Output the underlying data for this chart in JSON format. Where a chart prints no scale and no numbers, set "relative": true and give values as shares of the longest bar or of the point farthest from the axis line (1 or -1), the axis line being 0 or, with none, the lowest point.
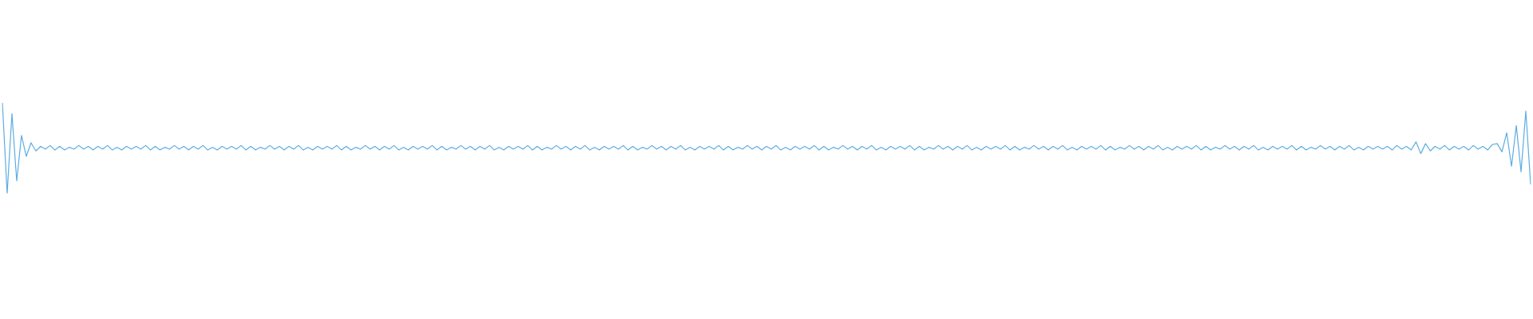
{
  "chart_data": {
    "type": "line",
    "relative": true,
    "legend": false,
    "marker": "none",
    "line_style": "solid",
    "categories": [
      null,
      null,
      null,
      null,
      null,
      null,
      null,
      null,
      null,
      null,
      null,
      null,
      null,
      null,
      null,
      null,
      null,
      null,
      null,
      null,
      null,
      null,
      null,
      null,
      null,
      null,
      null,
      null,
      null,
      null,
      null,
      null,
      null,
      null,
      null,
      null,
      null,
      null,
      null,
      null,
      null,
      null,
      null,
      null,
      null,
      null,
      null,
      null,
      null,
      null,
      null,
      null,
      null,
      null,
      null,
      null,
      null,
      null,
      null,
      null,
      null,
      null,
      null,
      null,
      null,
      null,
      null,
      null,
      null,
      null,
      null,
      null,
      null,
      null,
      null,
      null,
      null,
      null,
      null,
      null,
      null,
      null,
      null,
      null,
      null,
      null,
      null,
      null,
      null,
      null,
      null,
      null,
      null,
      null,
      null,
      null,
      null,
      null,
      null,
      null,
      null,
      null,
      null,
      null,
      null,
      null,
      null,
      null,
      null,
      null,
      null,
      null,
      null,
      null,
      null,
      null,
      null,
      null,
      null,
      null,
      null,
      null,
      null,
      null,
      null,
      null,
      null,
      null,
      null,
      null,
      null,
      null,
      null,
      null,
      null,
      null,
      null,
      null,
      null,
      null,
      null,
      null,
      null,
      null,
      null,
      null,
      null,
      null,
      null,
      null,
      null,
      null,
      null,
      null,
      null,
      null,
      null,
      null,
      null,
      null,
      null,
      null,
      null,
      null,
      null,
      null,
      null,
      null,
      null,
      null,
      null,
      null,
      null,
      null,
      null,
      null,
      null,
      null,
      null,
      null,
      null,
      null,
      null,
      null,
      null,
      null,
      null,
      null,
      null,
      null,
      null,
      null,
      null,
      null,
      null,
      null,
      null,
      null,
      null,
      null,
      null,
      null,
      null,
      null,
      null,
      null,
      null,
      null,
      null,
      null,
      null,
      null,
      null,
      null,
      null,
      null,
      null,
      null,
      null,
      null,
      null,
      null,
      null,
      null,
      null,
      null,
      null,
      null,
      null,
      null,
      null,
      null,
      null,
      null,
      null,
      null,
      null,
      null,
      null,
      null,
      null,
      null,
      null,
      null,
      null,
      null,
      null,
      null,
      null,
      null,
      null,
      null,
      null,
      null,
      null,
      null,
      null,
      null,
      null,
      null,
      null,
      null,
      null,
      null,
      null,
      null,
      null,
      null,
      null,
      null,
      null,
      null,
      null,
      null,
      null,
      null,
      null,
      null,
      null,
      null,
      null,
      null,
      null,
      null,
      null,
      null,
      null,
      null,
      null,
      null,
      null,
      null,
      null,
      null,
      null,
      null,
      null,
      null,
      null,
      null,
      null,
      null,
      null,
      null,
      null,
      null,
      null,
      null,
      null,
      null,
      null,
      null,
      null,
      null,
      null,
      null,
      null,
      null,
      null,
      null,
      null
    ],
    "series": [
      {
        "color": "#5dade2",
        "values": [
          1.0,
          0.0,
          0.88,
          0.14,
          0.64,
          0.41,
          0.56,
          0.47,
          0.52,
          0.49,
          0.53,
          0.48,
          0.52,
          0.48,
          0.51,
          0.49,
          0.53,
          0.49,
          0.52,
          0.48,
          0.52,
          0.49,
          0.53,
          0.48,
          0.51,
          0.48,
          0.52,
          0.49,
          0.52,
          0.49,
          0.53,
          0.48,
          0.52,
          0.48,
          0.51,
          0.49,
          0.53,
          0.49,
          0.52,
          0.48,
          0.52,
          0.49,
          0.53,
          0.48,
          0.51,
          0.48,
          0.52,
          0.49,
          0.52,
          0.49,
          0.53,
          0.48,
          0.52,
          0.48,
          0.51,
          0.49,
          0.53,
          0.49,
          0.52,
          0.48,
          0.52,
          0.49,
          0.53,
          0.48,
          0.51,
          0.48,
          0.52,
          0.49,
          0.52,
          0.49,
          0.53,
          0.48,
          0.52,
          0.48,
          0.51,
          0.49,
          0.53,
          0.49,
          0.52,
          0.48,
          0.52,
          0.49,
          0.53,
          0.48,
          0.51,
          0.48,
          0.52,
          0.49,
          0.52,
          0.49,
          0.53,
          0.48,
          0.52,
          0.48,
          0.51,
          0.49,
          0.53,
          0.49,
          0.52,
          0.48,
          0.52,
          0.49,
          0.53,
          0.48,
          0.51,
          0.48,
          0.52,
          0.49,
          0.52,
          0.49,
          0.53,
          0.48,
          0.52,
          0.48,
          0.51,
          0.49,
          0.53,
          0.49,
          0.52,
          0.48,
          0.52,
          0.49,
          0.53,
          0.48,
          0.51,
          0.48,
          0.52,
          0.49,
          0.52,
          0.49,
          0.53,
          0.48,
          0.52,
          0.48,
          0.51,
          0.49,
          0.53,
          0.49,
          0.52,
          0.48,
          0.52,
          0.49,
          0.53,
          0.48,
          0.51,
          0.48,
          0.52,
          0.49,
          0.52,
          0.49,
          0.53,
          0.48,
          0.52,
          0.48,
          0.51,
          0.49,
          0.53,
          0.49,
          0.52,
          0.48,
          0.52,
          0.49,
          0.53,
          0.48,
          0.51,
          0.48,
          0.52,
          0.49,
          0.52,
          0.49,
          0.53,
          0.48,
          0.52,
          0.48,
          0.51,
          0.49,
          0.53,
          0.49,
          0.52,
          0.48,
          0.52,
          0.49,
          0.53,
          0.48,
          0.51,
          0.48,
          0.52,
          0.49,
          0.52,
          0.49,
          0.53,
          0.48,
          0.52,
          0.48,
          0.51,
          0.49,
          0.53,
          0.49,
          0.52,
          0.48,
          0.52,
          0.49,
          0.53,
          0.48,
          0.51,
          0.48,
          0.52,
          0.49,
          0.52,
          0.49,
          0.53,
          0.48,
          0.52,
          0.48,
          0.51,
          0.49,
          0.53,
          0.49,
          0.52,
          0.48,
          0.52,
          0.49,
          0.53,
          0.48,
          0.51,
          0.48,
          0.52,
          0.49,
          0.52,
          0.49,
          0.53,
          0.48,
          0.52,
          0.48,
          0.51,
          0.49,
          0.53,
          0.49,
          0.52,
          0.48,
          0.52,
          0.49,
          0.53,
          0.48,
          0.51,
          0.48,
          0.52,
          0.49,
          0.52,
          0.49,
          0.53,
          0.48,
          0.52,
          0.48,
          0.51,
          0.49,
          0.53,
          0.49,
          0.52,
          0.48,
          0.52,
          0.49,
          0.53,
          0.48,
          0.51,
          0.48,
          0.52,
          0.49,
          0.52,
          0.49,
          0.53,
          0.48,
          0.52,
          0.48,
          0.51,
          0.49,
          0.53,
          0.49,
          0.52,
          0.48,
          0.52,
          0.49,
          0.53,
          0.48,
          0.51,
          0.48,
          0.52,
          0.49,
          0.52,
          0.49,
          0.52,
          0.48,
          0.53,
          0.49,
          0.52,
          0.48,
          0.57,
          0.44,
          0.55,
          0.47,
          0.52,
          0.49,
          0.53,
          0.48,
          0.52,
          0.49,
          0.52,
          0.48,
          0.53,
          0.49,
          0.52,
          0.48,
          0.54,
          0.55,
          0.46,
          0.67,
          0.3,
          0.75,
          0.24,
          0.91,
          0.1
        ]
      }
    ]
  }
}
